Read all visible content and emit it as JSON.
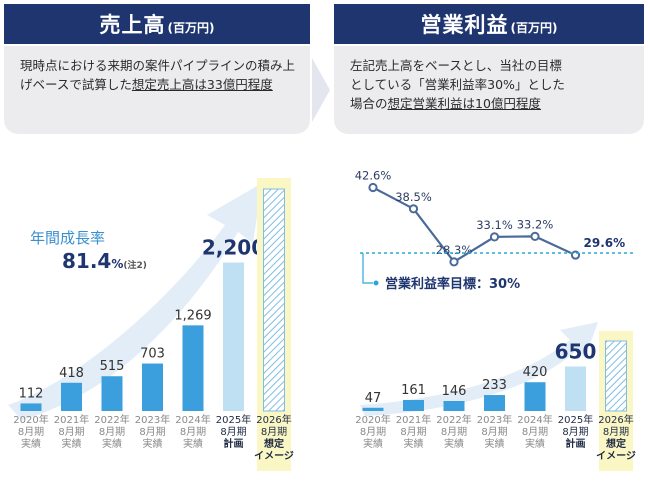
{
  "left_panel": {
    "title": "売上高",
    "unit": "(百万円)",
    "description_pre": "現時点における来期の案件パイプラインの積み上げベースで試算した",
    "description_underlined": "想定売上高は33億円程度",
    "growth_label": "年間成長率",
    "growth_value": "81.4",
    "growth_pct": "%",
    "growth_note": "(注2)"
  },
  "right_panel": {
    "title": "営業利益",
    "unit": "(百万円)",
    "description_line1": "左記売上高をベースとし、当社の目標",
    "description_line2": "としている「営業利益率30%」とした",
    "description_line3_pre": "場合の",
    "description_line3_underlined": "想定営業利益は10億円程度",
    "target_label": "営業利益率目標：30%"
  },
  "colors": {
    "header": "#1f3570",
    "bar_actual": "#3a9fdc",
    "bar_plan": "#bfe0f3",
    "image_box": "#fbf7c4",
    "line": "#4a6a9a",
    "target_line": "#29a8d8",
    "arrow": "#e3edf7"
  },
  "chart_data": [
    {
      "type": "bar",
      "title": "売上高",
      "categories": [
        [
          "2020年",
          "8月期",
          "実績"
        ],
        [
          "2021年",
          "8月期",
          "実績"
        ],
        [
          "2022年",
          "8月期",
          "実績"
        ],
        [
          "2023年",
          "8月期",
          "実績"
        ],
        [
          "2024年",
          "8月期",
          "実績"
        ],
        [
          "2025年",
          "8月期",
          "計画"
        ],
        [
          "2026年",
          "8月期",
          "想定",
          "イメージ"
        ]
      ],
      "values": [
        112,
        418,
        515,
        703,
        1269,
        2200,
        null
      ],
      "value_labels": [
        "112",
        "418",
        "515",
        "703",
        "1,269",
        "2,200",
        ""
      ],
      "kinds": [
        "actual",
        "actual",
        "actual",
        "actual",
        "actual",
        "plan",
        "image"
      ]
    },
    {
      "type": "bar",
      "title": "営業利益",
      "categories": [
        [
          "2020年",
          "8月期",
          "実績"
        ],
        [
          "2021年",
          "8月期",
          "実績"
        ],
        [
          "2022年",
          "8月期",
          "実績"
        ],
        [
          "2023年",
          "8月期",
          "実績"
        ],
        [
          "2024年",
          "8月期",
          "実績"
        ],
        [
          "2025年",
          "8月期",
          "計画"
        ],
        [
          "2026年",
          "8月期",
          "想定",
          "イメージ"
        ]
      ],
      "values": [
        47,
        161,
        146,
        233,
        420,
        650,
        null
      ],
      "value_labels": [
        "47",
        "161",
        "146",
        "233",
        "420",
        "650",
        ""
      ],
      "kinds": [
        "actual",
        "actual",
        "actual",
        "actual",
        "actual",
        "plan",
        "image"
      ]
    },
    {
      "type": "line",
      "title": "営業利益率",
      "values": [
        42.6,
        38.5,
        28.3,
        33.1,
        33.2,
        29.6
      ],
      "value_labels": [
        "42.6%",
        "38.5%",
        "28.3%",
        "33.1%",
        "33.2%",
        "29.6%"
      ],
      "target": 30
    }
  ]
}
